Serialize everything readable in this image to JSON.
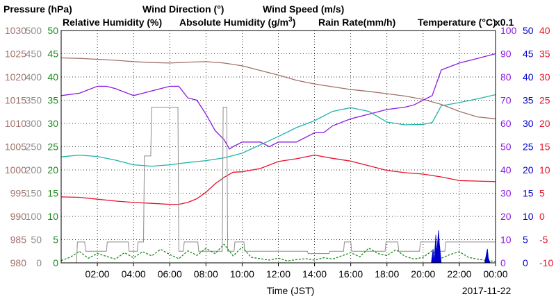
{
  "colors": {
    "pressure": "#a0706a",
    "wind_direction": "#8c8c8c",
    "wind_speed": "#1a8a1a",
    "humidity": "#8a1ae0",
    "abs_humidity": "#20b2aa",
    "rain": "#0000cc",
    "temperature": "#e8102a"
  },
  "legend": {
    "pressure": "Pressure (hPa)",
    "wind_direction": "Wind Direction (°)",
    "wind_speed": "Wind Speed (m/s)",
    "humidity": "Relative Humidity (%)",
    "abs_humidity_prefix": "Absolute Humidity (g/m",
    "abs_humidity_sup": "3",
    "abs_humidity_suffix": ")",
    "rain": "Rain Rate(mm/h)",
    "temperature": "Temperature (°C)",
    "rain_scale": "x0.1"
  },
  "xlabel": "Time (JST)",
  "date": "2017-11-22",
  "chart_data": {
    "type": "line",
    "x_hours_domain": [
      0,
      24
    ],
    "x_ticks": [
      "02:00",
      "04:00",
      "06:00",
      "08:00",
      "10:00",
      "12:00",
      "14:00",
      "16:00",
      "18:00",
      "20:00",
      "22:00",
      "00:00"
    ],
    "axes": {
      "pressure": {
        "ticks": [
          "980",
          "985",
          "990",
          "995",
          "1000",
          "1005",
          "1010",
          "1015",
          "1020",
          "1025",
          "1030"
        ],
        "range": [
          980,
          1030
        ]
      },
      "wind_direction": {
        "ticks": [
          "0",
          "50",
          "100",
          "150",
          "200",
          "250",
          "300",
          "350",
          "400",
          "450",
          "500"
        ],
        "range": [
          0,
          500
        ]
      },
      "wind_speed": {
        "ticks": [
          "0",
          "5",
          "10",
          "15",
          "20",
          "25",
          "30",
          "35",
          "40",
          "45",
          "50"
        ],
        "range": [
          0,
          50
        ]
      },
      "humidity": {
        "ticks": [
          "0",
          "10",
          "20",
          "30",
          "40",
          "50",
          "60",
          "70",
          "80",
          "90",
          "100"
        ],
        "range": [
          0,
          100
        ]
      },
      "rain": {
        "ticks": [
          "0",
          "5",
          "10",
          "15",
          "20",
          "25",
          "30",
          "35",
          "40",
          "45",
          "50"
        ],
        "range": [
          0,
          50
        ]
      },
      "temperature": {
        "ticks": [
          "-10",
          "-5",
          "0",
          "5",
          "10",
          "15",
          "20",
          "25",
          "30",
          "35",
          "40"
        ],
        "range": [
          -10,
          40
        ]
      }
    },
    "series": [
      {
        "name": "Pressure (hPa)",
        "axis": "pressure",
        "x": [
          0,
          1,
          2,
          3,
          4,
          5,
          6,
          7,
          8,
          9,
          10,
          11,
          12,
          13,
          14,
          15,
          16,
          17,
          18,
          19,
          20,
          21,
          22,
          23,
          24
        ],
        "y": [
          1024.1,
          1024.0,
          1023.8,
          1023.6,
          1023.3,
          1023.1,
          1023.0,
          1023.2,
          1023.3,
          1023.0,
          1022.4,
          1021.4,
          1020.4,
          1019.3,
          1018.5,
          1017.9,
          1017.3,
          1016.9,
          1016.4,
          1015.9,
          1015.2,
          1014.1,
          1012.6,
          1011.4,
          1011.0
        ]
      },
      {
        "name": "Relative Humidity (%)",
        "axis": "humidity",
        "x": [
          0,
          1,
          2,
          2.5,
          3,
          4,
          4.5,
          5,
          6,
          6.5,
          7,
          7.5,
          8,
          8.5,
          9,
          9.3,
          9.5,
          10,
          11,
          11.5,
          12,
          13,
          14,
          14.5,
          15,
          16,
          17,
          18,
          19,
          19.5,
          20,
          20.5,
          21,
          22,
          23,
          24
        ],
        "y": [
          72,
          73,
          76,
          76,
          75,
          72,
          73,
          74,
          76,
          76,
          71,
          70,
          64,
          57,
          53,
          49,
          50,
          52,
          52,
          50,
          52,
          52,
          56,
          56,
          59,
          62,
          64,
          66,
          67,
          68,
          70,
          72,
          83,
          86,
          88,
          90
        ]
      },
      {
        "name": "Absolute Humidity (g/m3)",
        "axis": "abs_humidity",
        "x": [
          0,
          1,
          2,
          3,
          4,
          5,
          6,
          7,
          8,
          9,
          10,
          11,
          12,
          13,
          14,
          15,
          16,
          17,
          18,
          19,
          20,
          20.5,
          21,
          22,
          23,
          24
        ],
        "y": [
          22.8,
          23.2,
          22.9,
          22.1,
          21.1,
          20.8,
          21.1,
          21.6,
          22.0,
          22.6,
          23.6,
          25.4,
          27.2,
          29.1,
          30.6,
          32.6,
          33.4,
          32.6,
          30.3,
          29.7,
          29.8,
          30.2,
          33.8,
          34.5,
          35.3,
          36.2
        ]
      },
      {
        "name": "Temperature (°C)",
        "axis": "temperature",
        "x": [
          0,
          1,
          2,
          3,
          4,
          5,
          6,
          6.5,
          7,
          7.5,
          8,
          8.5,
          9,
          9.5,
          10,
          11,
          12,
          13,
          14,
          15,
          16,
          17,
          18,
          19,
          20,
          21,
          22,
          23,
          24
        ],
        "y": [
          4.2,
          4.1,
          3.7,
          3.3,
          3.0,
          2.8,
          2.6,
          2.6,
          3.0,
          3.8,
          5.2,
          7.0,
          8.4,
          9.5,
          9.6,
          10.3,
          11.8,
          12.4,
          13.2,
          12.5,
          11.9,
          10.9,
          9.9,
          9.4,
          9.1,
          8.5,
          7.7,
          7.6,
          7.5
        ]
      },
      {
        "name": "Wind Direction (°)",
        "axis": "wind_direction",
        "x": [
          0,
          0.85,
          0.9,
          1.3,
          1.35,
          2.5,
          2.55,
          3.7,
          3.75,
          4.2,
          4.25,
          4.55,
          4.6,
          4.95,
          5.0,
          5.55,
          5.6,
          6.45,
          6.5,
          6.75,
          6.8,
          7.55,
          7.6,
          8.2,
          8.25,
          8.9,
          8.95,
          9.15,
          9.2,
          9.55,
          9.6,
          10.1,
          10.15,
          11.4,
          11.45,
          13.6,
          13.65,
          14.8,
          14.85,
          15.6,
          15.65,
          16.0,
          16.05,
          17.9,
          17.95,
          18.6,
          18.65,
          19.8,
          19.85,
          20.8,
          20.85,
          21.2,
          21.25,
          24
        ],
        "y": [
          0,
          0,
          45,
          45,
          25,
          25,
          45,
          45,
          25,
          25,
          45,
          45,
          230,
          230,
          335,
          335,
          335,
          335,
          25,
          25,
          45,
          45,
          25,
          25,
          25,
          25,
          335,
          335,
          25,
          25,
          45,
          45,
          25,
          25,
          25,
          25,
          20,
          20,
          25,
          25,
          45,
          45,
          25,
          25,
          45,
          45,
          25,
          25,
          45,
          45,
          25,
          25,
          45,
          45
        ]
      },
      {
        "name": "Wind Speed (m/s)",
        "axis": "wind_speed",
        "x": [
          0,
          0.5,
          1,
          1.5,
          2,
          2.5,
          3,
          3.5,
          4,
          4.5,
          5,
          5.5,
          6,
          6.5,
          7,
          7.5,
          8,
          8.5,
          9,
          9.5,
          10,
          10.5,
          11,
          11.5,
          12,
          12.5,
          13,
          13.5,
          14,
          14.5,
          15,
          15.5,
          16,
          16.5,
          17,
          17.5,
          18,
          18.5,
          19,
          19.5,
          20,
          20.5,
          21,
          21.5,
          22,
          22.5,
          23,
          23.5,
          24
        ],
        "y": [
          0.5,
          1.2,
          2.5,
          1.0,
          2.0,
          1.4,
          0.8,
          2.2,
          1.1,
          2.4,
          1.5,
          2.9,
          1.8,
          0.9,
          2.6,
          1.6,
          3.1,
          2.0,
          4.0,
          1.5,
          3.4,
          1.2,
          0.9,
          0.6,
          1.0,
          0.4,
          0.7,
          0.9,
          0.6,
          1.1,
          0.8,
          1.5,
          2.2,
          1.3,
          3.2,
          2.0,
          1.6,
          2.8,
          1.4,
          0.8,
          1.2,
          2.6,
          1.0,
          1.8,
          2.4,
          1.2,
          0.8,
          0.5,
          0.3
        ]
      },
      {
        "name": "Rain Rate(mm/h)",
        "axis": "rain",
        "x": [
          20.45,
          20.55,
          20.6,
          20.7,
          20.75,
          20.85,
          20.9,
          21.0,
          23.4,
          23.5,
          23.55,
          23.6,
          23.7
        ],
        "y": [
          0,
          3,
          0,
          6,
          2,
          7,
          4,
          0,
          0,
          2,
          3,
          1,
          0
        ]
      }
    ]
  }
}
